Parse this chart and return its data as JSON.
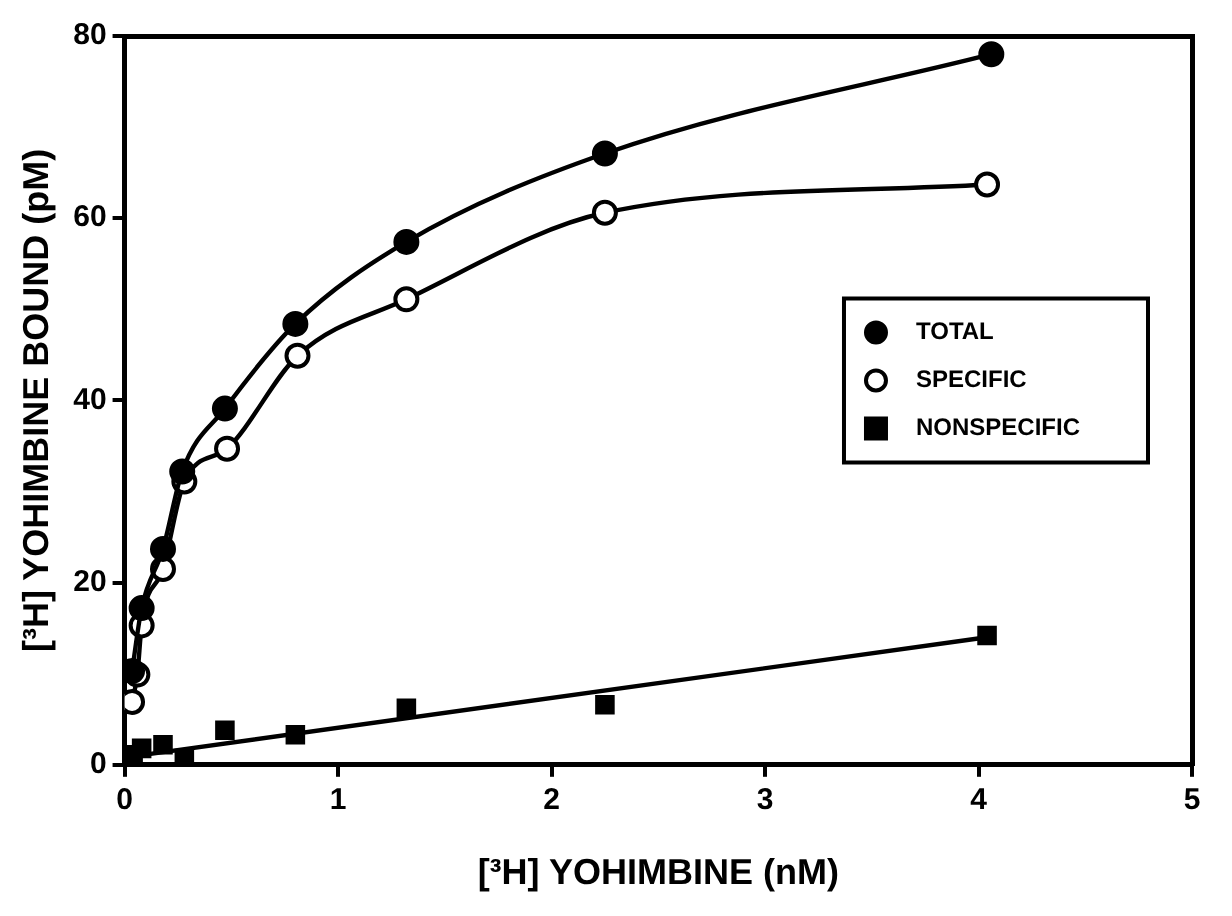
{
  "chart_data": {
    "type": "scatter",
    "xlabel": "[³H] YOHIMBINE (nM)",
    "ylabel": "[³H] YOHIMBINE BOUND (pM)",
    "xlim": [
      0,
      5
    ],
    "xticks": [
      0,
      1,
      2,
      3,
      4,
      5
    ],
    "ylim": [
      0,
      80
    ],
    "yticks": [
      0,
      20,
      40,
      60,
      80
    ],
    "grid": false,
    "legend": "right",
    "series": [
      {
        "name": "TOTAL",
        "type": "line",
        "marker": "circle",
        "color": "#000000",
        "x": [
          0.035,
          0.08,
          0.18,
          0.27,
          0.47,
          0.8,
          1.32,
          2.25,
          4.06
        ],
        "values": [
          10.3,
          17.2,
          23.7,
          32.2,
          39.1,
          48.4,
          57.4,
          67.1,
          78.0
        ]
      },
      {
        "name": "SPECIFIC",
        "type": "line",
        "marker": "circle",
        "color": "#000000",
        "x": [
          0.035,
          0.06,
          0.08,
          0.18,
          0.28,
          0.48,
          0.81,
          1.32,
          2.25,
          4.04
        ],
        "values": [
          6.9,
          9.9,
          15.3,
          21.5,
          31.1,
          34.7,
          44.9,
          51.1,
          60.6,
          63.7
        ]
      },
      {
        "name": "NONSPECIFIC",
        "type": "scatter",
        "marker": "square",
        "color": "#000000",
        "x": [
          0.04,
          0.08,
          0.18,
          0.28,
          0.47,
          0.8,
          1.32,
          2.25,
          4.04
        ],
        "values": [
          1.1,
          1.8,
          2.2,
          0.7,
          3.8,
          3.3,
          6.2,
          6.6,
          14.2
        ]
      },
      {
        "type": "line",
        "marker": "none",
        "color": "#000000",
        "x": [
          0,
          4.04
        ],
        "values": [
          0.8,
          14.0
        ]
      }
    ]
  }
}
